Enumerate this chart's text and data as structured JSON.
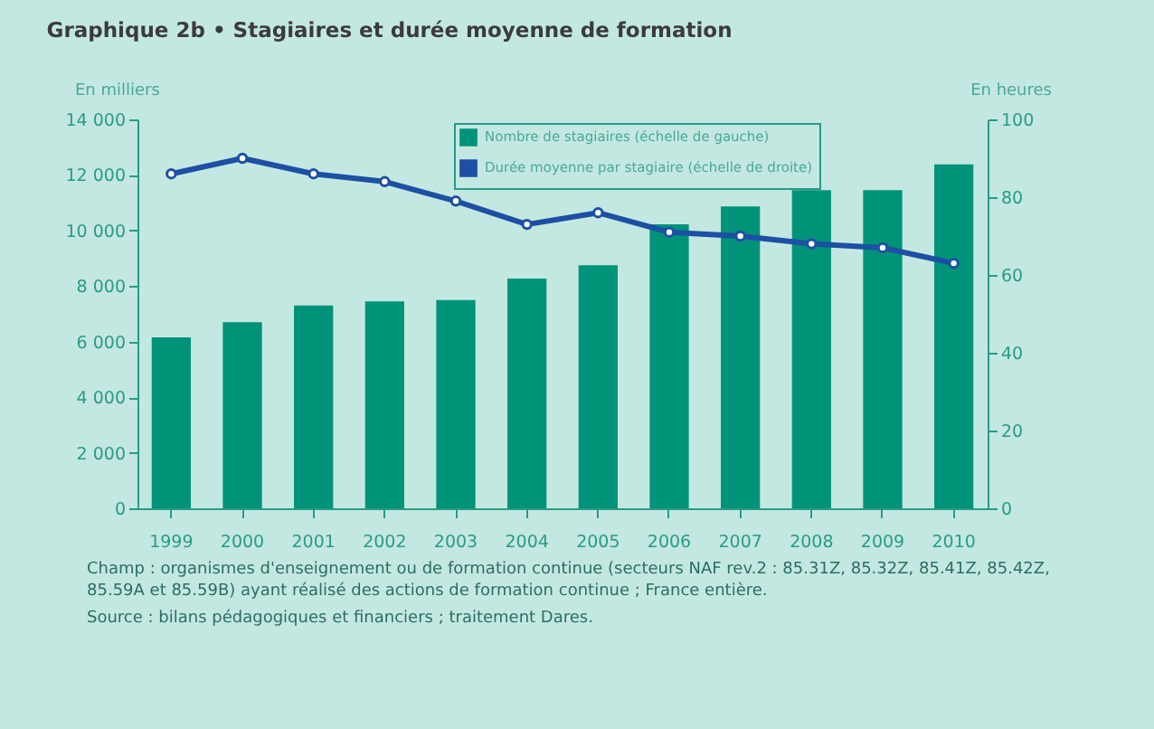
{
  "chart_data": {
    "type": "bar",
    "title": "Graphique 2b • Stagiaires et durée moyenne de formation",
    "ylabel": "En milliers",
    "y2label": "En heures",
    "categories": [
      "1999",
      "2000",
      "2001",
      "2002",
      "2003",
      "2004",
      "2005",
      "2006",
      "2007",
      "2008",
      "2009",
      "2010"
    ],
    "series": [
      {
        "name": "Nombre de stagiaires (échelle de gauche)",
        "color": "#00937a",
        "values": [
          6150,
          6700,
          7300,
          7450,
          7500,
          8270,
          8750,
          10220,
          10870,
          11450,
          11450,
          12380
        ]
      },
      {
        "name": "Durée moyenne par stagiaire (échelle de droite)",
        "type": "line",
        "axis": "y2",
        "color": "#1d4fa3",
        "values": [
          86,
          90,
          86,
          84,
          79,
          73,
          76,
          71,
          70,
          68,
          67,
          63
        ]
      }
    ],
    "ylim": [
      0,
      14000
    ],
    "yticks": [
      0,
      {
        "value": 2000,
        "label": "2 000"
      },
      {
        "value": 4000,
        "label": "4 000"
      },
      {
        "value": 6000,
        "label": "6 000"
      },
      {
        "value": 8000,
        "label": "8 000"
      },
      {
        "value": 10000,
        "label": "10 000"
      },
      {
        "value": 12000,
        "label": "12 000"
      },
      {
        "value": 14000,
        "label": "14 000"
      }
    ],
    "y2lim": [
      0,
      100
    ],
    "y2ticks": [
      0,
      20,
      40,
      60,
      80,
      100
    ],
    "marker": "circle",
    "grid": false,
    "legend": "top",
    "annotations": [
      "Champ : organismes d'enseignement ou de formation continue (secteurs NAF rev.2 : 85.31Z, 85.32Z, 85.41Z, 85.42Z, 85.59A et 85.59B) ayant réalisé des actions de formation continue ; France entière.",
      "Source : bilans pédagogiques et financiers ; traitement Dares."
    ]
  }
}
